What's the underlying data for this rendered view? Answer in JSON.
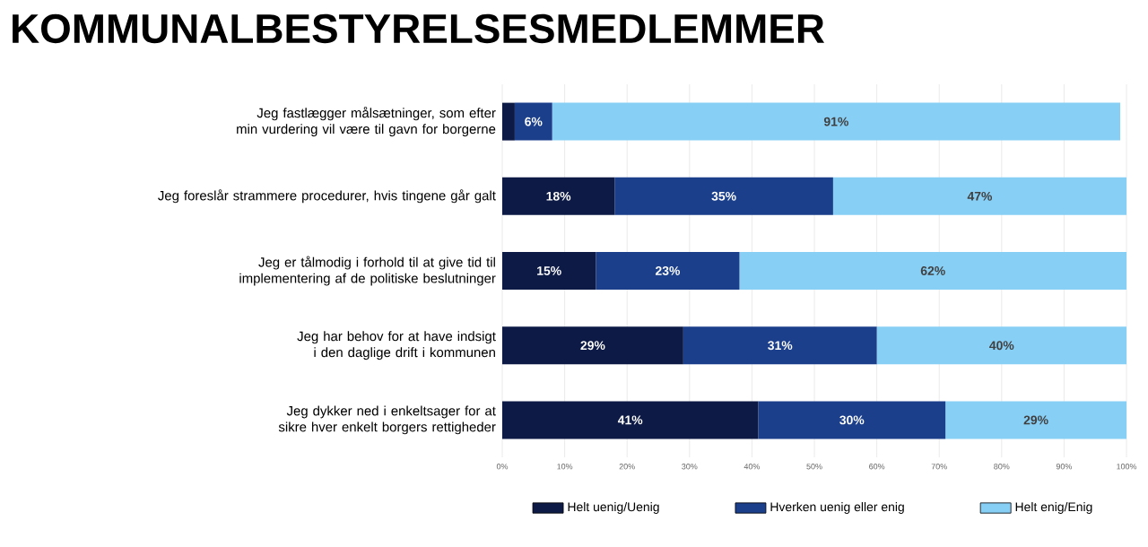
{
  "chart_data": {
    "type": "bar",
    "orientation": "horizontal",
    "stacked": true,
    "title": "KOMMUNALBESTYRELSESMEDLEMMER",
    "categories": [
      "Jeg fastlægger målsætninger, som efter min vurdering vil være til gavn for borgerne",
      "Jeg foreslår strammere procedurer, hvis tingene går galt",
      "Jeg er tålmodig i forhold til at give tid til implementering af de politiske beslutninger",
      "Jeg har behov for at have indsigt i den daglige drift i kommunen",
      "Jeg dykker ned i enkeltsager for at sikre hver enkelt borgers rettigheder"
    ],
    "series": [
      {
        "name": "Helt uenig/Uenig",
        "color": "#0d1a45",
        "values": [
          2,
          18,
          15,
          29,
          41
        ],
        "value_labels": [
          null,
          "18%",
          "15%",
          "29%",
          "41%"
        ]
      },
      {
        "name": "Hverken uenig eller enig",
        "color": "#1b3f8b",
        "values": [
          6,
          35,
          23,
          31,
          30
        ],
        "value_labels": [
          "6%",
          "35%",
          "23%",
          "31%",
          "30%"
        ]
      },
      {
        "name": "Helt enig/Enig",
        "color": "#88cff5",
        "values": [
          91,
          47,
          62,
          40,
          29
        ],
        "value_labels": [
          "91%",
          "47%",
          "62%",
          "40%",
          "29%"
        ]
      }
    ],
    "xlim": [
      0,
      100
    ],
    "xticks": [
      {
        "value": 0,
        "label": "0%"
      },
      {
        "value": 10,
        "label": "10%"
      },
      {
        "value": 20,
        "label": "20%"
      },
      {
        "value": 30,
        "label": "30%"
      },
      {
        "value": 40,
        "label": "40%"
      },
      {
        "value": 50,
        "label": "50%"
      },
      {
        "value": 60,
        "label": "60%"
      },
      {
        "value": 70,
        "label": "70%"
      },
      {
        "value": 80,
        "label": "80%"
      },
      {
        "value": 90,
        "label": "90%"
      },
      {
        "value": 100,
        "label": "100%"
      }
    ],
    "grid": "x",
    "legend": "bottom"
  }
}
